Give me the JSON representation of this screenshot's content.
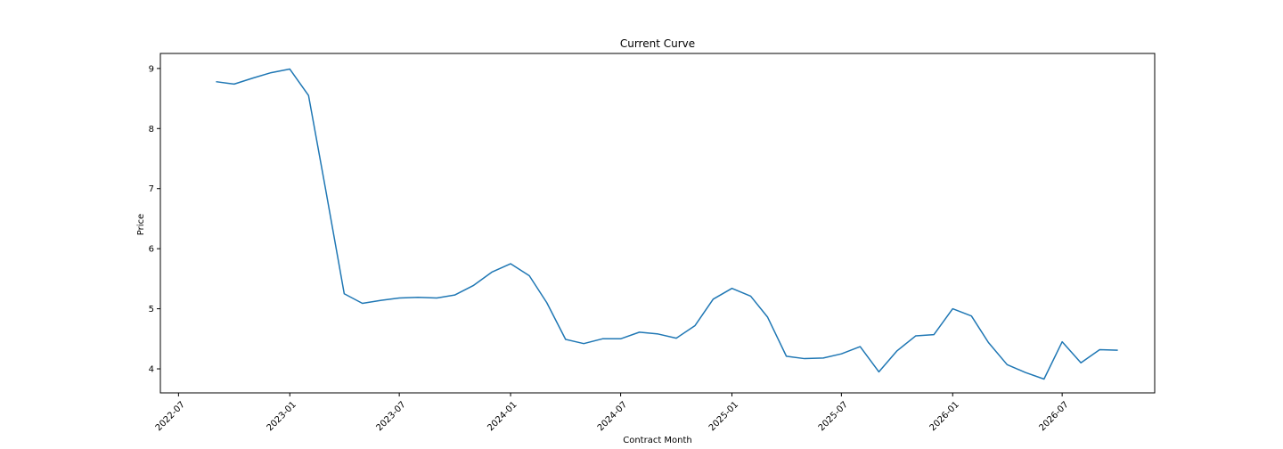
{
  "chart_data": {
    "type": "line",
    "title": "Current Curve",
    "xlabel": "Contract Month",
    "ylabel": "Price",
    "xlim": [
      "2022-06-01",
      "2026-12-01"
    ],
    "ylim": [
      3.6,
      9.25
    ],
    "grid": false,
    "line_color": "#1f77b4",
    "x_ticks": [
      {
        "date": "2022-07-01",
        "label": "2022-07"
      },
      {
        "date": "2023-01-01",
        "label": "2023-01"
      },
      {
        "date": "2023-07-01",
        "label": "2023-07"
      },
      {
        "date": "2024-01-01",
        "label": "2024-01"
      },
      {
        "date": "2024-07-01",
        "label": "2024-07"
      },
      {
        "date": "2025-01-01",
        "label": "2025-01"
      },
      {
        "date": "2025-07-01",
        "label": "2025-07"
      },
      {
        "date": "2026-01-01",
        "label": "2026-01"
      },
      {
        "date": "2026-07-01",
        "label": "2026-07"
      }
    ],
    "y_ticks": [
      {
        "value": 4,
        "label": "4"
      },
      {
        "value": 5,
        "label": "5"
      },
      {
        "value": 6,
        "label": "6"
      },
      {
        "value": 7,
        "label": "7"
      },
      {
        "value": 8,
        "label": "8"
      },
      {
        "value": 9,
        "label": "9"
      }
    ],
    "series": [
      {
        "x": [
          "2022-09-01",
          "2022-10-01",
          "2022-11-01",
          "2022-12-01",
          "2023-01-01",
          "2023-02-01",
          "2023-03-01",
          "2023-04-01",
          "2023-05-01",
          "2023-06-01",
          "2023-07-01",
          "2023-08-01",
          "2023-09-01",
          "2023-10-01",
          "2023-11-01",
          "2023-12-01",
          "2024-01-01",
          "2024-02-01",
          "2024-03-01",
          "2024-04-01",
          "2024-05-01",
          "2024-06-01",
          "2024-07-01",
          "2024-08-01",
          "2024-09-01",
          "2024-10-01",
          "2024-11-01",
          "2024-12-01",
          "2025-01-01",
          "2025-02-01",
          "2025-03-01",
          "2025-04-01",
          "2025-05-01",
          "2025-06-01",
          "2025-07-01",
          "2025-08-01",
          "2025-09-01",
          "2025-10-01",
          "2025-11-01",
          "2025-12-01",
          "2026-01-01",
          "2026-02-01",
          "2026-03-01",
          "2026-04-01",
          "2026-05-01",
          "2026-06-01",
          "2026-07-01",
          "2026-08-01",
          "2026-09-01",
          "2026-10-01"
        ],
        "values": [
          8.78,
          8.74,
          8.84,
          8.93,
          8.99,
          8.55,
          7.0,
          5.25,
          5.09,
          5.14,
          5.18,
          5.19,
          5.18,
          5.23,
          5.39,
          5.61,
          5.75,
          5.55,
          5.1,
          4.49,
          4.42,
          4.5,
          4.5,
          4.61,
          4.58,
          4.51,
          4.72,
          5.16,
          5.34,
          5.21,
          4.86,
          4.21,
          4.17,
          4.18,
          4.25,
          4.37,
          3.95,
          4.3,
          4.55,
          4.57,
          5.0,
          4.88,
          4.44,
          4.07,
          3.94,
          3.83,
          4.45,
          4.1,
          4.32,
          4.31
        ]
      }
    ]
  }
}
